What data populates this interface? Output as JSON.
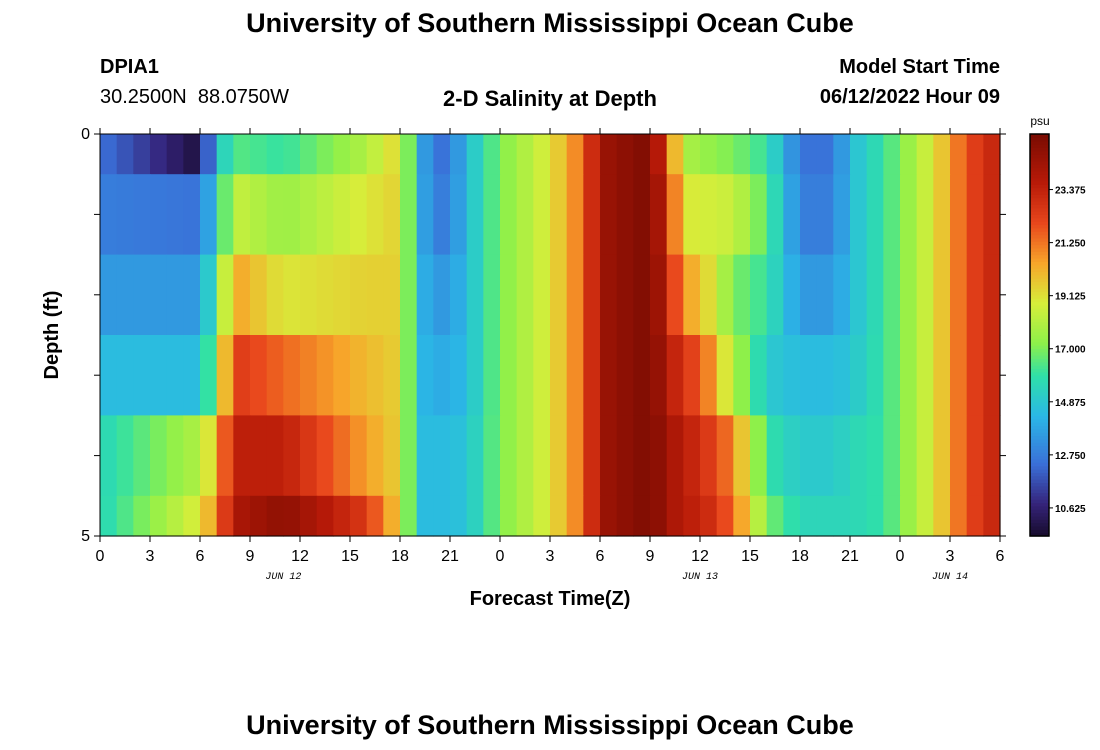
{
  "page": {
    "title": "University of Southern Mississippi Ocean Cube",
    "title_repeat": "University of Southern Mississippi Ocean Cube"
  },
  "station": {
    "name": "DPIA1",
    "coords": "30.2500N  88.0750W"
  },
  "model": {
    "label": "Model Start Time",
    "value": "06/12/2022 Hour 09"
  },
  "chart_data": {
    "type": "heatmap",
    "title": "2-D Salinity at Depth",
    "xlabel": "Forecast Time(Z)",
    "ylabel": "Depth (ft)",
    "x_hours": [
      0,
      54
    ],
    "x_hour_step": 1,
    "x_tick_labels": [
      "0",
      "3",
      "6",
      "9",
      "12",
      "15",
      "18",
      "21",
      "0",
      "3",
      "6",
      "9",
      "12",
      "15",
      "18",
      "21",
      "0",
      "3",
      "6"
    ],
    "date_labels": [
      {
        "label": "JUN 12",
        "hour": 11
      },
      {
        "label": "JUN 13",
        "hour": 36
      },
      {
        "label": "JUN 14",
        "hour": 51
      }
    ],
    "y_depth_ft": [
      0,
      5
    ],
    "y_tick_labels": [
      "0",
      "5"
    ],
    "depth_layers_ft": [
      [
        0,
        0.5
      ],
      [
        0.5,
        1.5
      ],
      [
        1.5,
        2.5
      ],
      [
        2.5,
        3.5
      ],
      [
        3.5,
        4.5
      ],
      [
        4.5,
        5
      ]
    ],
    "salinity_keyframes_hour": [
      0,
      6,
      7,
      8,
      11,
      16,
      18,
      19,
      20,
      21,
      22,
      24,
      27,
      29,
      30,
      33,
      34,
      35,
      36,
      38,
      40,
      42,
      44,
      45,
      47,
      49,
      50,
      52,
      54
    ],
    "salinity_psu": [
      [
        12.5,
        9.8,
        14.5,
        16.5,
        16.0,
        18.0,
        19.5,
        14.5,
        12.5,
        12.5,
        14.5,
        17.0,
        19.0,
        21.5,
        24.5,
        25.5,
        22.0,
        18.0,
        17.5,
        17.0,
        16.0,
        12.5,
        12.5,
        14.5,
        16.0,
        18.0,
        19.0,
        22.0,
        23.5
      ],
      [
        12.8,
        12.5,
        15.0,
        18.5,
        17.5,
        19.0,
        19.5,
        14.5,
        12.8,
        12.8,
        14.5,
        17.0,
        19.0,
        21.5,
        24.5,
        25.5,
        23.0,
        19.0,
        18.8,
        18.5,
        16.5,
        12.8,
        12.8,
        14.5,
        16.0,
        18.0,
        19.0,
        22.0,
        23.5
      ],
      [
        13.5,
        13.5,
        16.5,
        20.5,
        19.0,
        19.5,
        19.5,
        14.5,
        13.5,
        13.5,
        14.5,
        17.0,
        19.0,
        21.5,
        24.5,
        25.5,
        23.5,
        20.5,
        20.0,
        17.0,
        16.0,
        13.5,
        13.5,
        14.5,
        16.0,
        18.0,
        19.0,
        22.0,
        23.5
      ],
      [
        14.5,
        14.5,
        17.5,
        22.5,
        21.5,
        20.0,
        19.5,
        14.5,
        14.0,
        14.0,
        14.5,
        17.0,
        19.0,
        21.5,
        24.5,
        25.5,
        24.0,
        22.5,
        22.0,
        18.0,
        15.0,
        14.5,
        14.5,
        14.8,
        16.0,
        18.0,
        19.0,
        22.0,
        23.5
      ],
      [
        15.5,
        18.0,
        20.0,
        23.5,
        23.5,
        20.5,
        19.5,
        14.5,
        14.5,
        14.5,
        14.8,
        17.0,
        19.0,
        21.5,
        24.5,
        25.5,
        24.5,
        23.5,
        23.0,
        21.0,
        16.0,
        15.0,
        15.0,
        15.5,
        16.0,
        18.0,
        19.0,
        22.0,
        23.5
      ],
      [
        15.5,
        19.0,
        21.0,
        24.0,
        25.0,
        22.5,
        19.5,
        14.5,
        14.5,
        14.5,
        14.8,
        17.0,
        19.0,
        21.5,
        24.5,
        25.5,
        24.5,
        23.5,
        23.5,
        21.5,
        17.0,
        15.5,
        15.5,
        15.5,
        16.0,
        18.0,
        19.0,
        22.0,
        23.5
      ]
    ],
    "colorbar": {
      "unit": "psu",
      "range": [
        9.5,
        25.6
      ],
      "tick_labels": [
        "10.625",
        "12.750",
        "14.875",
        "17.000",
        "19.125",
        "21.250",
        "23.375"
      ],
      "tick_values": [
        10.625,
        12.75,
        14.875,
        17.0,
        19.125,
        21.25,
        23.375
      ]
    },
    "colormap": {
      "stops": [
        0,
        0.08,
        0.18,
        0.3,
        0.4,
        0.48,
        0.58,
        0.68,
        0.78,
        0.88,
        1.0
      ],
      "colors": [
        "#160b2a",
        "#35237a",
        "#3a6fd8",
        "#2ab8e6",
        "#2fe0a8",
        "#8df04a",
        "#d7ee3a",
        "#f7a52a",
        "#e8461c",
        "#b81a08",
        "#7a0c02"
      ]
    }
  }
}
